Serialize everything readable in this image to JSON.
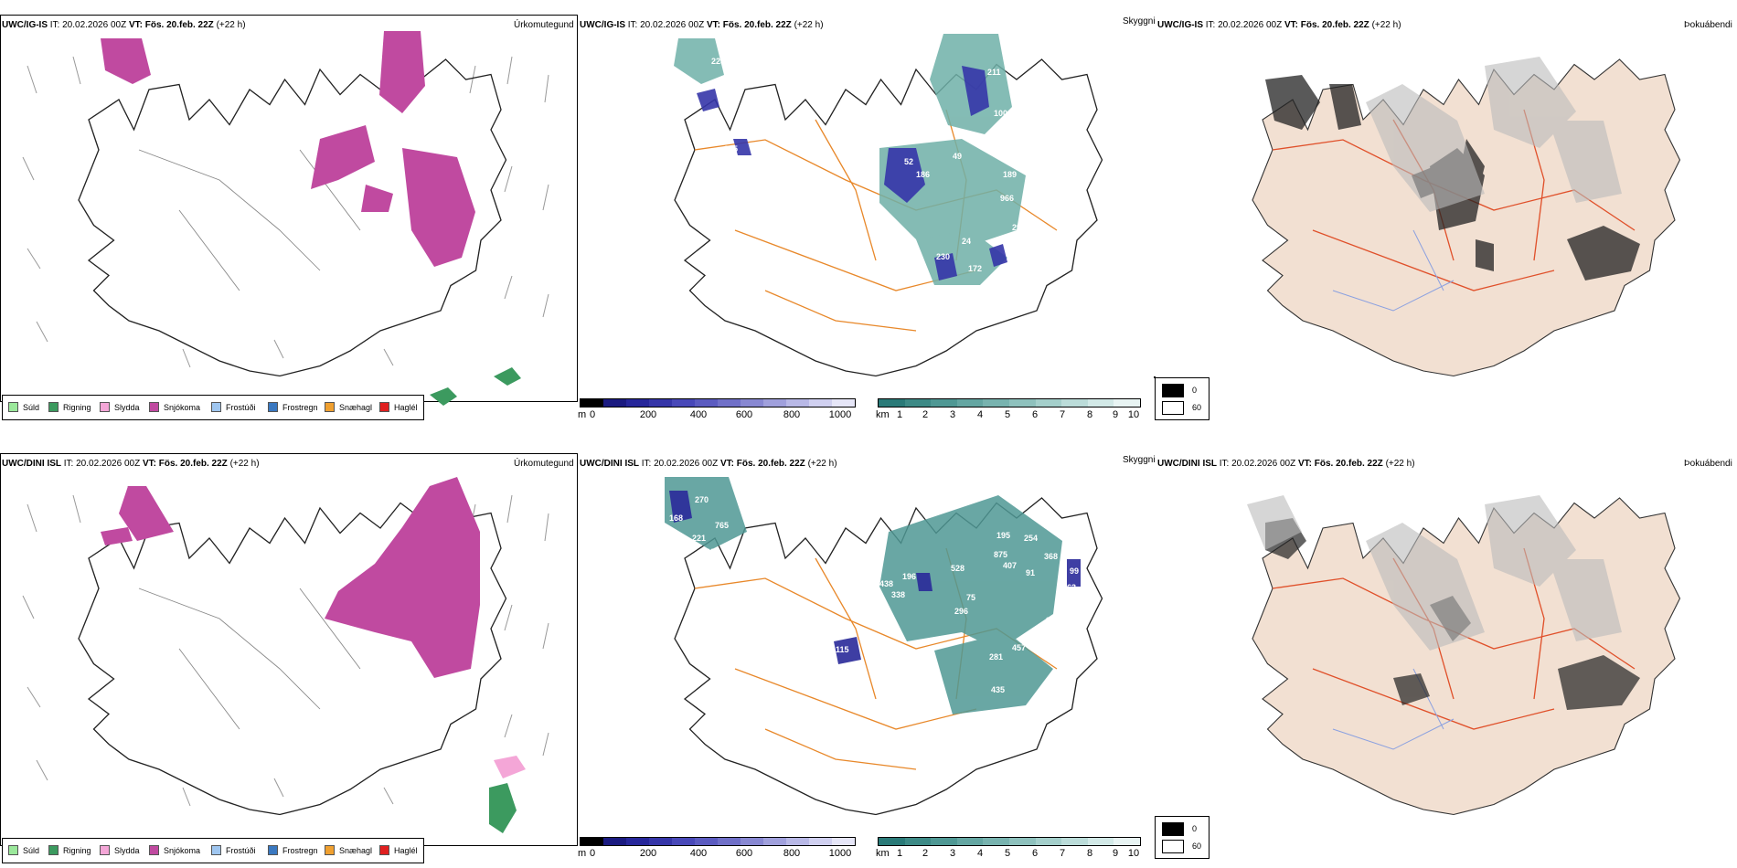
{
  "rows": [
    {
      "model": "UWC/IG-IS",
      "it_label": "IT:",
      "it_value": "20.02.2026 00Z",
      "vt_label": "VT:",
      "vt_value": "Fös. 20.feb. 22Z",
      "lead": "(+22 h)",
      "cloud_labels": [
        "223",
        "275",
        "52",
        "186",
        "49",
        "369",
        "100",
        "189",
        "966",
        "350",
        "29",
        "165",
        "24",
        "172",
        "230",
        "119",
        "211"
      ]
    },
    {
      "model": "UWC/DINI ISL",
      "it_label": "IT:",
      "it_value": "20.02.2026 00Z",
      "vt_label": "VT:",
      "vt_value": "Fös. 20.feb. 22Z",
      "lead": "(+22 h)",
      "cloud_labels": [
        "270",
        "168",
        "765",
        "03",
        "196",
        "438",
        "338",
        "528",
        "195",
        "254",
        "875",
        "407",
        "91",
        "368",
        "99",
        "463",
        "75",
        "296",
        "371",
        "457",
        "281",
        "496",
        "435",
        "115",
        "221"
      ]
    }
  ],
  "panel_titles": {
    "precip": "Úrkomutegund",
    "visibility": "Skyggni",
    "fog": "Þokuábendi"
  },
  "precip_legend": [
    {
      "label": "Súld",
      "color": "#9be89b"
    },
    {
      "label": "Rigning",
      "color": "#3c9a5f"
    },
    {
      "label": "Slydda",
      "color": "#f4a6d7"
    },
    {
      "label": "Snjókoma",
      "color": "#c04aa0"
    },
    {
      "label": "Frostúði",
      "color": "#9fc6f0"
    },
    {
      "label": "Frostregn",
      "color": "#3a78c0"
    },
    {
      "label": "Snæhagl",
      "color": "#f0a030"
    },
    {
      "label": "Haglél",
      "color": "#e02020"
    }
  ],
  "ceiling_bar": {
    "unit": "m",
    "ticks": [
      "0",
      "200",
      "400",
      "600",
      "800",
      "1000"
    ],
    "colors": [
      "#000000",
      "#1a1a80",
      "#26269a",
      "#3535a8",
      "#4848b8",
      "#5b5bc0",
      "#7070c8",
      "#8888d2",
      "#a0a0dc",
      "#b8b8e6",
      "#d0d0f0",
      "#e6e6f8"
    ]
  },
  "visibility_bar": {
    "unit": "km",
    "ticks": [
      "1",
      "2",
      "3",
      "4",
      "5",
      "6",
      "7",
      "8",
      "9",
      "10"
    ],
    "colors": [
      "#2a7a78",
      "#3d8a86",
      "#4f9894",
      "#64a6a2",
      "#78b3af",
      "#8ec1bd",
      "#a4cfcb",
      "#bbdcd9",
      "#d2e9e7",
      "#e8f4f3"
    ]
  },
  "fog_legend": [
    {
      "label": "0",
      "color": "#000000"
    },
    {
      "label": "60",
      "color": "#ffffff"
    }
  ]
}
